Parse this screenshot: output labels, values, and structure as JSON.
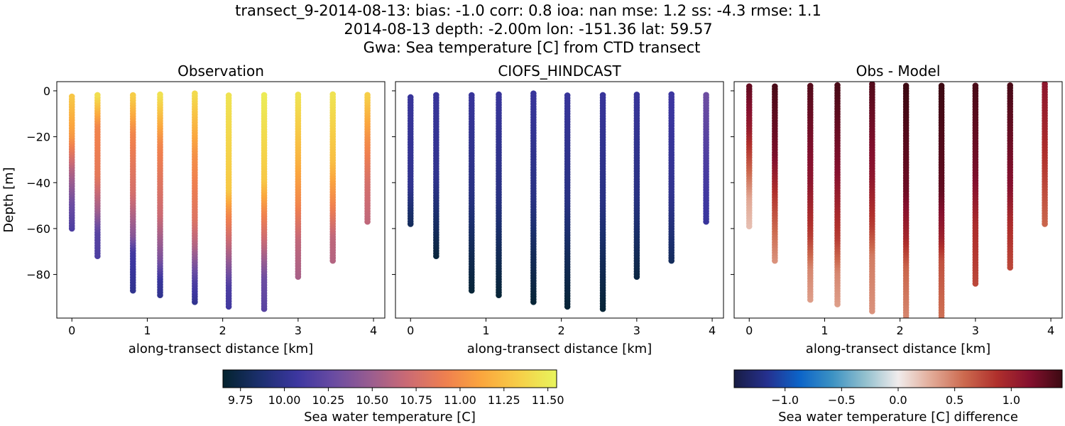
{
  "suptitle": [
    "transect_9-2014-08-13: bias: -1.0  corr: 0.8  ioa: nan  mse: 1.2  ss: -4.3  rmse: 1.1",
    "2014-08-13 depth: -2.00m lon: -151.36 lat: 59.57",
    "Gwa: Sea temperature [C] from CTD transect"
  ],
  "chart_data": [
    {
      "type": "scatter",
      "title": "Observation",
      "xlabel": "along-transect distance [km]",
      "ylabel": "Depth [m]",
      "xlim": [
        -0.2,
        4.15
      ],
      "ylim": [
        -99,
        4
      ],
      "xticks": [
        0,
        1,
        2,
        3,
        4
      ],
      "yticks": [
        0,
        -20,
        -40,
        -60,
        -80
      ],
      "colormap": "thermal",
      "clim": [
        9.65,
        11.55
      ],
      "casts": [
        {
          "x": 0.0,
          "top": -2,
          "bottom": -60,
          "profile": [
            [
              0,
              11.3
            ],
            [
              0.3,
              11.05
            ],
            [
              0.55,
              10.6
            ],
            [
              0.8,
              10.3
            ],
            [
              1.0,
              10.15
            ]
          ]
        },
        {
          "x": 0.34,
          "top": -1,
          "bottom": -72,
          "profile": [
            [
              0,
              11.45
            ],
            [
              0.2,
              10.95
            ],
            [
              0.5,
              10.85
            ],
            [
              0.72,
              10.5
            ],
            [
              0.85,
              10.2
            ],
            [
              1.0,
              10.15
            ]
          ]
        },
        {
          "x": 0.81,
          "top": -1,
          "bottom": -87,
          "profile": [
            [
              0,
              11.35
            ],
            [
              0.2,
              10.95
            ],
            [
              0.5,
              10.75
            ],
            [
              0.72,
              10.4
            ],
            [
              0.8,
              10.1
            ],
            [
              1.0,
              10.0
            ]
          ]
        },
        {
          "x": 1.17,
          "top": -1,
          "bottom": -89,
          "profile": [
            [
              0,
              11.45
            ],
            [
              0.25,
              10.95
            ],
            [
              0.6,
              10.7
            ],
            [
              0.82,
              10.35
            ],
            [
              0.92,
              10.05
            ],
            [
              1.0,
              10.0
            ]
          ]
        },
        {
          "x": 1.63,
          "top": -1,
          "bottom": -92,
          "profile": [
            [
              0,
              11.4
            ],
            [
              0.3,
              11.0
            ],
            [
              0.6,
              10.8
            ],
            [
              0.72,
              10.6
            ],
            [
              0.9,
              10.15
            ],
            [
              1.0,
              10.0
            ]
          ]
        },
        {
          "x": 2.08,
          "top": -1,
          "bottom": -94,
          "profile": [
            [
              0,
              11.45
            ],
            [
              0.45,
              11.3
            ],
            [
              0.55,
              11.0
            ],
            [
              0.75,
              10.55
            ],
            [
              0.9,
              10.15
            ],
            [
              1.0,
              10.1
            ]
          ]
        },
        {
          "x": 2.55,
          "top": -1,
          "bottom": -95,
          "profile": [
            [
              0,
              11.5
            ],
            [
              0.4,
              11.3
            ],
            [
              0.55,
              10.95
            ],
            [
              0.72,
              10.6
            ],
            [
              0.85,
              10.3
            ],
            [
              1.0,
              10.2
            ]
          ]
        },
        {
          "x": 3.0,
          "top": -1,
          "bottom": -81,
          "profile": [
            [
              0,
              11.45
            ],
            [
              0.35,
              11.2
            ],
            [
              0.6,
              10.95
            ],
            [
              0.8,
              10.65
            ],
            [
              1.0,
              10.55
            ]
          ]
        },
        {
          "x": 3.46,
          "top": -1,
          "bottom": -74,
          "profile": [
            [
              0,
              11.45
            ],
            [
              0.4,
              11.25
            ],
            [
              0.65,
              10.95
            ],
            [
              0.85,
              10.65
            ],
            [
              1.0,
              10.6
            ]
          ]
        },
        {
          "x": 3.92,
          "top": -1,
          "bottom": -57,
          "profile": [
            [
              0,
              11.35
            ],
            [
              0.35,
              11.0
            ],
            [
              0.7,
              10.75
            ],
            [
              1.0,
              10.65
            ]
          ]
        }
      ]
    },
    {
      "type": "scatter",
      "title": "CIOFS_HINDCAST",
      "xlabel": "along-transect distance [km]",
      "xlim": [
        -0.2,
        4.15
      ],
      "ylim": [
        -99,
        4
      ],
      "xticks": [
        0,
        1,
        2,
        3,
        4
      ],
      "colormap": "thermal",
      "clim": [
        9.65,
        11.55
      ],
      "casts": [
        {
          "x": 0.0,
          "top": -2,
          "bottom": -58,
          "profile": [
            [
              0,
              10.05
            ],
            [
              0.7,
              10.0
            ],
            [
              0.9,
              9.85
            ],
            [
              1.0,
              9.8
            ]
          ]
        },
        {
          "x": 0.34,
          "top": -1,
          "bottom": -72,
          "profile": [
            [
              0,
              10.05
            ],
            [
              0.5,
              10.0
            ],
            [
              0.75,
              9.85
            ],
            [
              1.0,
              9.7
            ]
          ]
        },
        {
          "x": 0.81,
          "top": -1,
          "bottom": -87,
          "profile": [
            [
              0,
              10.05
            ],
            [
              0.5,
              9.95
            ],
            [
              0.75,
              9.8
            ],
            [
              1.0,
              9.68
            ]
          ]
        },
        {
          "x": 1.17,
          "top": -1,
          "bottom": -89,
          "profile": [
            [
              0,
              10.05
            ],
            [
              0.5,
              9.95
            ],
            [
              0.75,
              9.8
            ],
            [
              1.0,
              9.68
            ]
          ]
        },
        {
          "x": 1.63,
          "top": -1,
          "bottom": -92,
          "profile": [
            [
              0,
              10.05
            ],
            [
              0.5,
              9.95
            ],
            [
              0.75,
              9.8
            ],
            [
              1.0,
              9.68
            ]
          ]
        },
        {
          "x": 2.08,
          "top": -1,
          "bottom": -94,
          "profile": [
            [
              0,
              10.05
            ],
            [
              0.5,
              9.95
            ],
            [
              0.75,
              9.8
            ],
            [
              1.0,
              9.68
            ]
          ]
        },
        {
          "x": 2.55,
          "top": -1,
          "bottom": -95,
          "profile": [
            [
              0,
              10.05
            ],
            [
              0.5,
              9.95
            ],
            [
              0.75,
              9.8
            ],
            [
              1.0,
              9.68
            ]
          ]
        },
        {
          "x": 3.0,
          "top": -1,
          "bottom": -81,
          "profile": [
            [
              0,
              10.05
            ],
            [
              0.55,
              9.95
            ],
            [
              0.8,
              9.82
            ],
            [
              1.0,
              9.72
            ]
          ]
        },
        {
          "x": 3.46,
          "top": -1,
          "bottom": -74,
          "profile": [
            [
              0,
              10.08
            ],
            [
              0.6,
              10.0
            ],
            [
              0.85,
              9.88
            ],
            [
              1.0,
              9.8
            ]
          ]
        },
        {
          "x": 3.92,
          "top": -1,
          "bottom": -57,
          "profile": [
            [
              0,
              10.3
            ],
            [
              0.5,
              10.15
            ],
            [
              1.0,
              10.05
            ]
          ]
        }
      ]
    },
    {
      "type": "scatter",
      "title": "Obs - Model",
      "xlabel": "along-transect distance [km]",
      "xlim": [
        -0.2,
        4.15
      ],
      "ylim": [
        -99,
        4
      ],
      "xticks": [
        0,
        1,
        2,
        3,
        4
      ],
      "colormap": "balance",
      "clim": [
        -1.45,
        1.45
      ],
      "casts": [
        {
          "x": 0.0,
          "top": 3,
          "bottom": -59,
          "profile": [
            [
              0,
              1.3
            ],
            [
              0.3,
              1.05
            ],
            [
              0.6,
              0.6
            ],
            [
              0.8,
              0.3
            ],
            [
              1.0,
              0.2
            ]
          ]
        },
        {
          "x": 0.34,
          "top": 3,
          "bottom": -74,
          "profile": [
            [
              0,
              1.4
            ],
            [
              0.4,
              1.2
            ],
            [
              0.65,
              0.8
            ],
            [
              0.85,
              0.55
            ],
            [
              1.0,
              0.4
            ]
          ]
        },
        {
          "x": 0.81,
          "top": 3,
          "bottom": -91,
          "profile": [
            [
              0,
              1.35
            ],
            [
              0.45,
              1.1
            ],
            [
              0.7,
              0.8
            ],
            [
              0.85,
              0.45
            ],
            [
              1.0,
              0.35
            ]
          ]
        },
        {
          "x": 1.17,
          "top": 3,
          "bottom": -93,
          "profile": [
            [
              0,
              1.4
            ],
            [
              0.4,
              1.15
            ],
            [
              0.7,
              0.8
            ],
            [
              0.85,
              0.45
            ],
            [
              1.0,
              0.35
            ]
          ]
        },
        {
          "x": 1.63,
          "top": 3,
          "bottom": -96,
          "profile": [
            [
              0,
              1.35
            ],
            [
              0.4,
              1.1
            ],
            [
              0.62,
              0.8
            ],
            [
              0.75,
              0.5
            ],
            [
              1.0,
              0.4
            ]
          ]
        },
        {
          "x": 2.08,
          "top": 3,
          "bottom": -99,
          "profile": [
            [
              0,
              1.45
            ],
            [
              0.45,
              1.25
            ],
            [
              0.65,
              0.95
            ],
            [
              0.78,
              0.6
            ],
            [
              1.0,
              0.45
            ]
          ]
        },
        {
          "x": 2.55,
          "top": 3,
          "bottom": -99,
          "profile": [
            [
              0,
              1.45
            ],
            [
              0.45,
              1.3
            ],
            [
              0.65,
              1.0
            ],
            [
              0.75,
              0.7
            ],
            [
              1.0,
              0.55
            ]
          ]
        },
        {
          "x": 3.0,
          "top": 3,
          "bottom": -84,
          "profile": [
            [
              0,
              1.4
            ],
            [
              0.45,
              1.2
            ],
            [
              0.7,
              0.9
            ],
            [
              1.0,
              0.75
            ]
          ]
        },
        {
          "x": 3.46,
          "top": 3,
          "bottom": -77,
          "profile": [
            [
              0,
              1.4
            ],
            [
              0.55,
              1.15
            ],
            [
              0.75,
              0.9
            ],
            [
              1.0,
              0.75
            ]
          ]
        },
        {
          "x": 3.92,
          "top": 3,
          "bottom": -58,
          "profile": [
            [
              0,
              1.1
            ],
            [
              0.45,
              0.9
            ],
            [
              0.8,
              0.7
            ],
            [
              1.0,
              0.6
            ]
          ]
        }
      ]
    }
  ],
  "colorbars": [
    {
      "label": "Sea water temperature [C]",
      "colormap": "thermal",
      "clim": [
        9.65,
        11.55
      ],
      "ticks": [
        9.75,
        10.0,
        10.25,
        10.5,
        10.75,
        11.0,
        11.25,
        11.5
      ],
      "tick_labels": [
        "9.75",
        "10.00",
        "10.25",
        "10.50",
        "10.75",
        "11.00",
        "11.25",
        "11.50"
      ]
    },
    {
      "label": "Sea water temperature [C] difference",
      "colormap": "balance",
      "clim": [
        -1.45,
        1.45
      ],
      "ticks": [
        -1.0,
        -0.5,
        0.0,
        0.5,
        1.0
      ],
      "tick_labels": [
        "−1.0",
        "−0.5",
        "0.0",
        "0.5",
        "1.0"
      ]
    }
  ],
  "colormaps": {
    "thermal": [
      "#04232e",
      "#1b2f6e",
      "#3c36a0",
      "#6a4ca2",
      "#9b5d8f",
      "#cc6b73",
      "#ef7f4f",
      "#fba73e",
      "#f6cf48",
      "#e8f55c"
    ],
    "balance": [
      "#181c43",
      "#25308e",
      "#0c64c8",
      "#3c92c3",
      "#93c0ce",
      "#f0ecec",
      "#e2ab98",
      "#cc6a4f",
      "#b0302c",
      "#85102e",
      "#3c0912"
    ]
  }
}
